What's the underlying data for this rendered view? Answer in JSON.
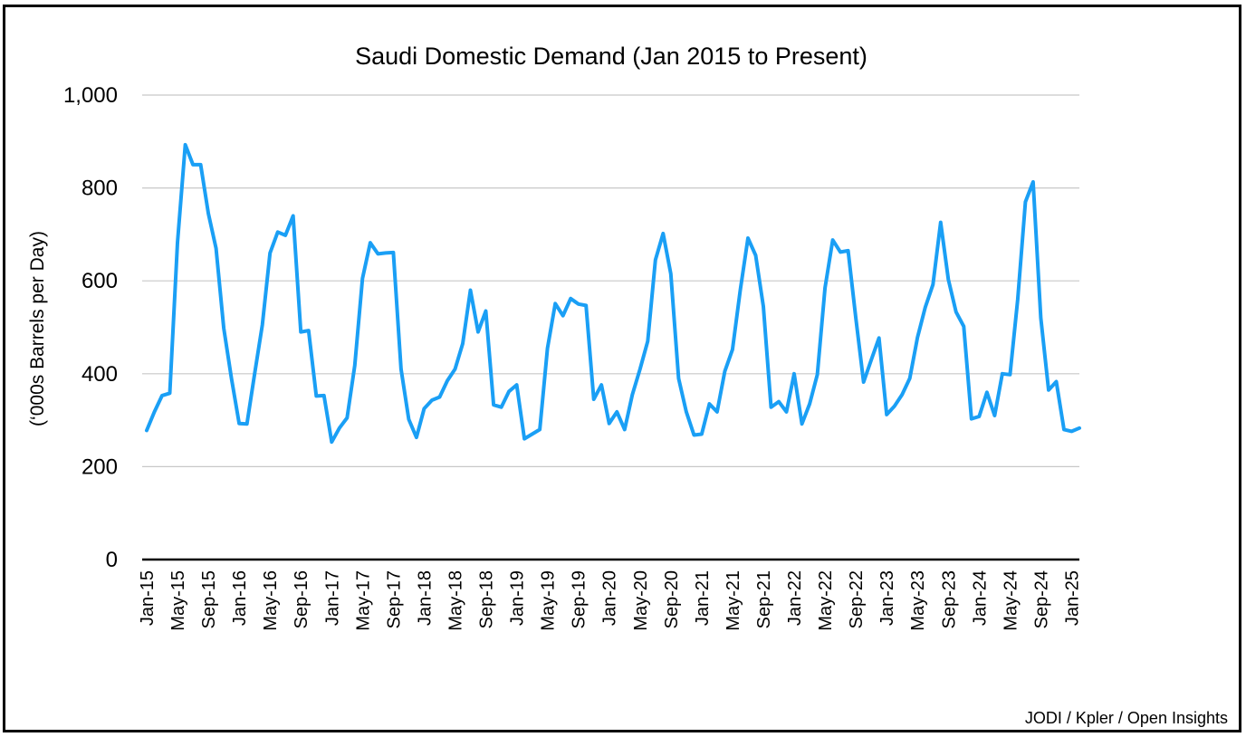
{
  "chart_data": {
    "type": "line",
    "title": "Saudi Domestic Demand (Jan 2015 to Present)",
    "xlabel": "",
    "ylabel": "(‘000s Barrels per Day)",
    "ylim": [
      0,
      1000
    ],
    "yticks": [
      0,
      200,
      400,
      600,
      800,
      1000
    ],
    "ytick_labels": [
      "0",
      "200",
      "400",
      "600",
      "800",
      "1,000"
    ],
    "grid": true,
    "xtick_labels": [
      "Jan-15",
      "May-15",
      "Sep-15",
      "Jan-16",
      "May-16",
      "Sep-16",
      "Jan-17",
      "May-17",
      "Sep-17",
      "Jan-18",
      "May-18",
      "Sep-18",
      "Jan-19",
      "May-19",
      "Sep-19",
      "Jan-20",
      "May-20",
      "Sep-20",
      "Jan-21",
      "May-21",
      "Sep-21",
      "Jan-22",
      "May-22",
      "Sep-22",
      "Jan-23",
      "May-23",
      "Sep-23",
      "Jan-24",
      "May-24",
      "Sep-24",
      "Jan-25"
    ],
    "x_start": "Jan-15",
    "x_frequency": "monthly",
    "series": [
      {
        "color": "#1a9ff5",
        "values": [
          278,
          318,
          353,
          358,
          682,
          893,
          850,
          850,
          745,
          670,
          498,
          390,
          293,
          292,
          400,
          505,
          660,
          705,
          698,
          740,
          490,
          493,
          352,
          353,
          253,
          283,
          305,
          418,
          605,
          682,
          658,
          660,
          661,
          410,
          302,
          263,
          325,
          343,
          350,
          385,
          410,
          465,
          580,
          490,
          535,
          333,
          328,
          362,
          376,
          260,
          270,
          280,
          455,
          551,
          525,
          562,
          550,
          547,
          345,
          376,
          293,
          318,
          280,
          355,
          410,
          470,
          645,
          702,
          615,
          390,
          318,
          268,
          270,
          335,
          318,
          405,
          452,
          580,
          692,
          655,
          545,
          328,
          340,
          318,
          400,
          292,
          335,
          398,
          585,
          688,
          662,
          665,
          520,
          382,
          430,
          477,
          312,
          330,
          355,
          390,
          478,
          543,
          592,
          726,
          603,
          533,
          502,
          303,
          308,
          360,
          310,
          400,
          398,
          560,
          770,
          813,
          520,
          365,
          383,
          280,
          276,
          283
        ]
      }
    ]
  },
  "source_note": "JODI / Kpler / Open Insights",
  "colors": {
    "line": "#1a9ff5",
    "grid": "#c8c8c8",
    "axis": "#000000"
  }
}
